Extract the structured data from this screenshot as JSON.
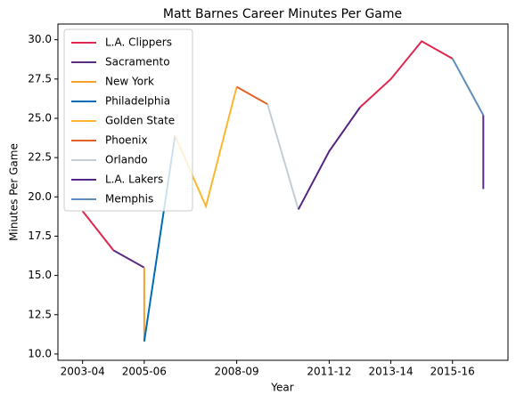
{
  "chart_data": {
    "type": "line",
    "title": "Matt Barnes Career Minutes Per Game",
    "xlabel": "Year",
    "ylabel": "Minutes Per Game",
    "xlim": [
      2002.2,
      2016.8
    ],
    "ylim": [
      9.6,
      31.0
    ],
    "xticks": [
      {
        "value": 2003,
        "label": "2003-04"
      },
      {
        "value": 2005,
        "label": "2005-06"
      },
      {
        "value": 2008,
        "label": "2008-09"
      },
      {
        "value": 2011,
        "label": "2011-12"
      },
      {
        "value": 2013,
        "label": "2013-14"
      },
      {
        "value": 2015,
        "label": "2015-16"
      }
    ],
    "yticks": [
      {
        "value": 10,
        "label": "10.0"
      },
      {
        "value": 12.5,
        "label": "12.5"
      },
      {
        "value": 15,
        "label": "15.0"
      },
      {
        "value": 17.5,
        "label": "17.5"
      },
      {
        "value": 20,
        "label": "20.0"
      },
      {
        "value": 22.5,
        "label": "22.5"
      },
      {
        "value": 25,
        "label": "25.0"
      },
      {
        "value": 27.5,
        "label": "27.5"
      },
      {
        "value": 30,
        "label": "30.0"
      }
    ],
    "legend": "upper left",
    "series": [
      {
        "name": "L.A. Clippers",
        "color": "#e0264e",
        "x": [
          2003,
          2004
        ],
        "values": [
          19.1,
          16.6
        ]
      },
      {
        "name": "Sacramento",
        "color": "#5a2d81",
        "x": [
          2004,
          2005
        ],
        "values": [
          16.6,
          15.5
        ]
      },
      {
        "name": "New York",
        "color": "#f5a02a",
        "x": [
          2005,
          2005
        ],
        "values": [
          15.5,
          10.8
        ]
      },
      {
        "name": "Philadelphia",
        "color": "#006bb6",
        "x": [
          2005,
          2006
        ],
        "values": [
          10.8,
          23.9
        ]
      },
      {
        "name": "Golden State",
        "color": "#fdb72e",
        "x": [
          2006,
          2007,
          2008
        ],
        "values": [
          23.9,
          19.4,
          27.0
        ]
      },
      {
        "name": "Phoenix",
        "color": "#e0622a",
        "x": [
          2008,
          2009
        ],
        "values": [
          27.0,
          25.9
        ]
      },
      {
        "name": "Orlando",
        "color": "#c4ced4",
        "x": [
          2009,
          2010
        ],
        "values": [
          25.9,
          19.2
        ]
      },
      {
        "name": "L.A. Lakers",
        "color": "#552583",
        "x": [
          2010,
          2011,
          2012
        ],
        "values": [
          19.2,
          22.9,
          25.7
        ]
      },
      {
        "name": "L.A. Clippers",
        "color": "#e0264e",
        "x": [
          2012,
          2013,
          2014,
          2015
        ],
        "values": [
          25.7,
          27.5,
          29.9,
          28.8
        ]
      },
      {
        "name": "Memphis",
        "color": "#5d8dbb",
        "x": [
          2015,
          2016
        ],
        "values": [
          28.8,
          25.2
        ]
      },
      {
        "name": "Sacramento",
        "color": "#5a2d81",
        "x": [
          2016,
          2016
        ],
        "values": [
          25.2,
          20.5
        ]
      }
    ]
  }
}
